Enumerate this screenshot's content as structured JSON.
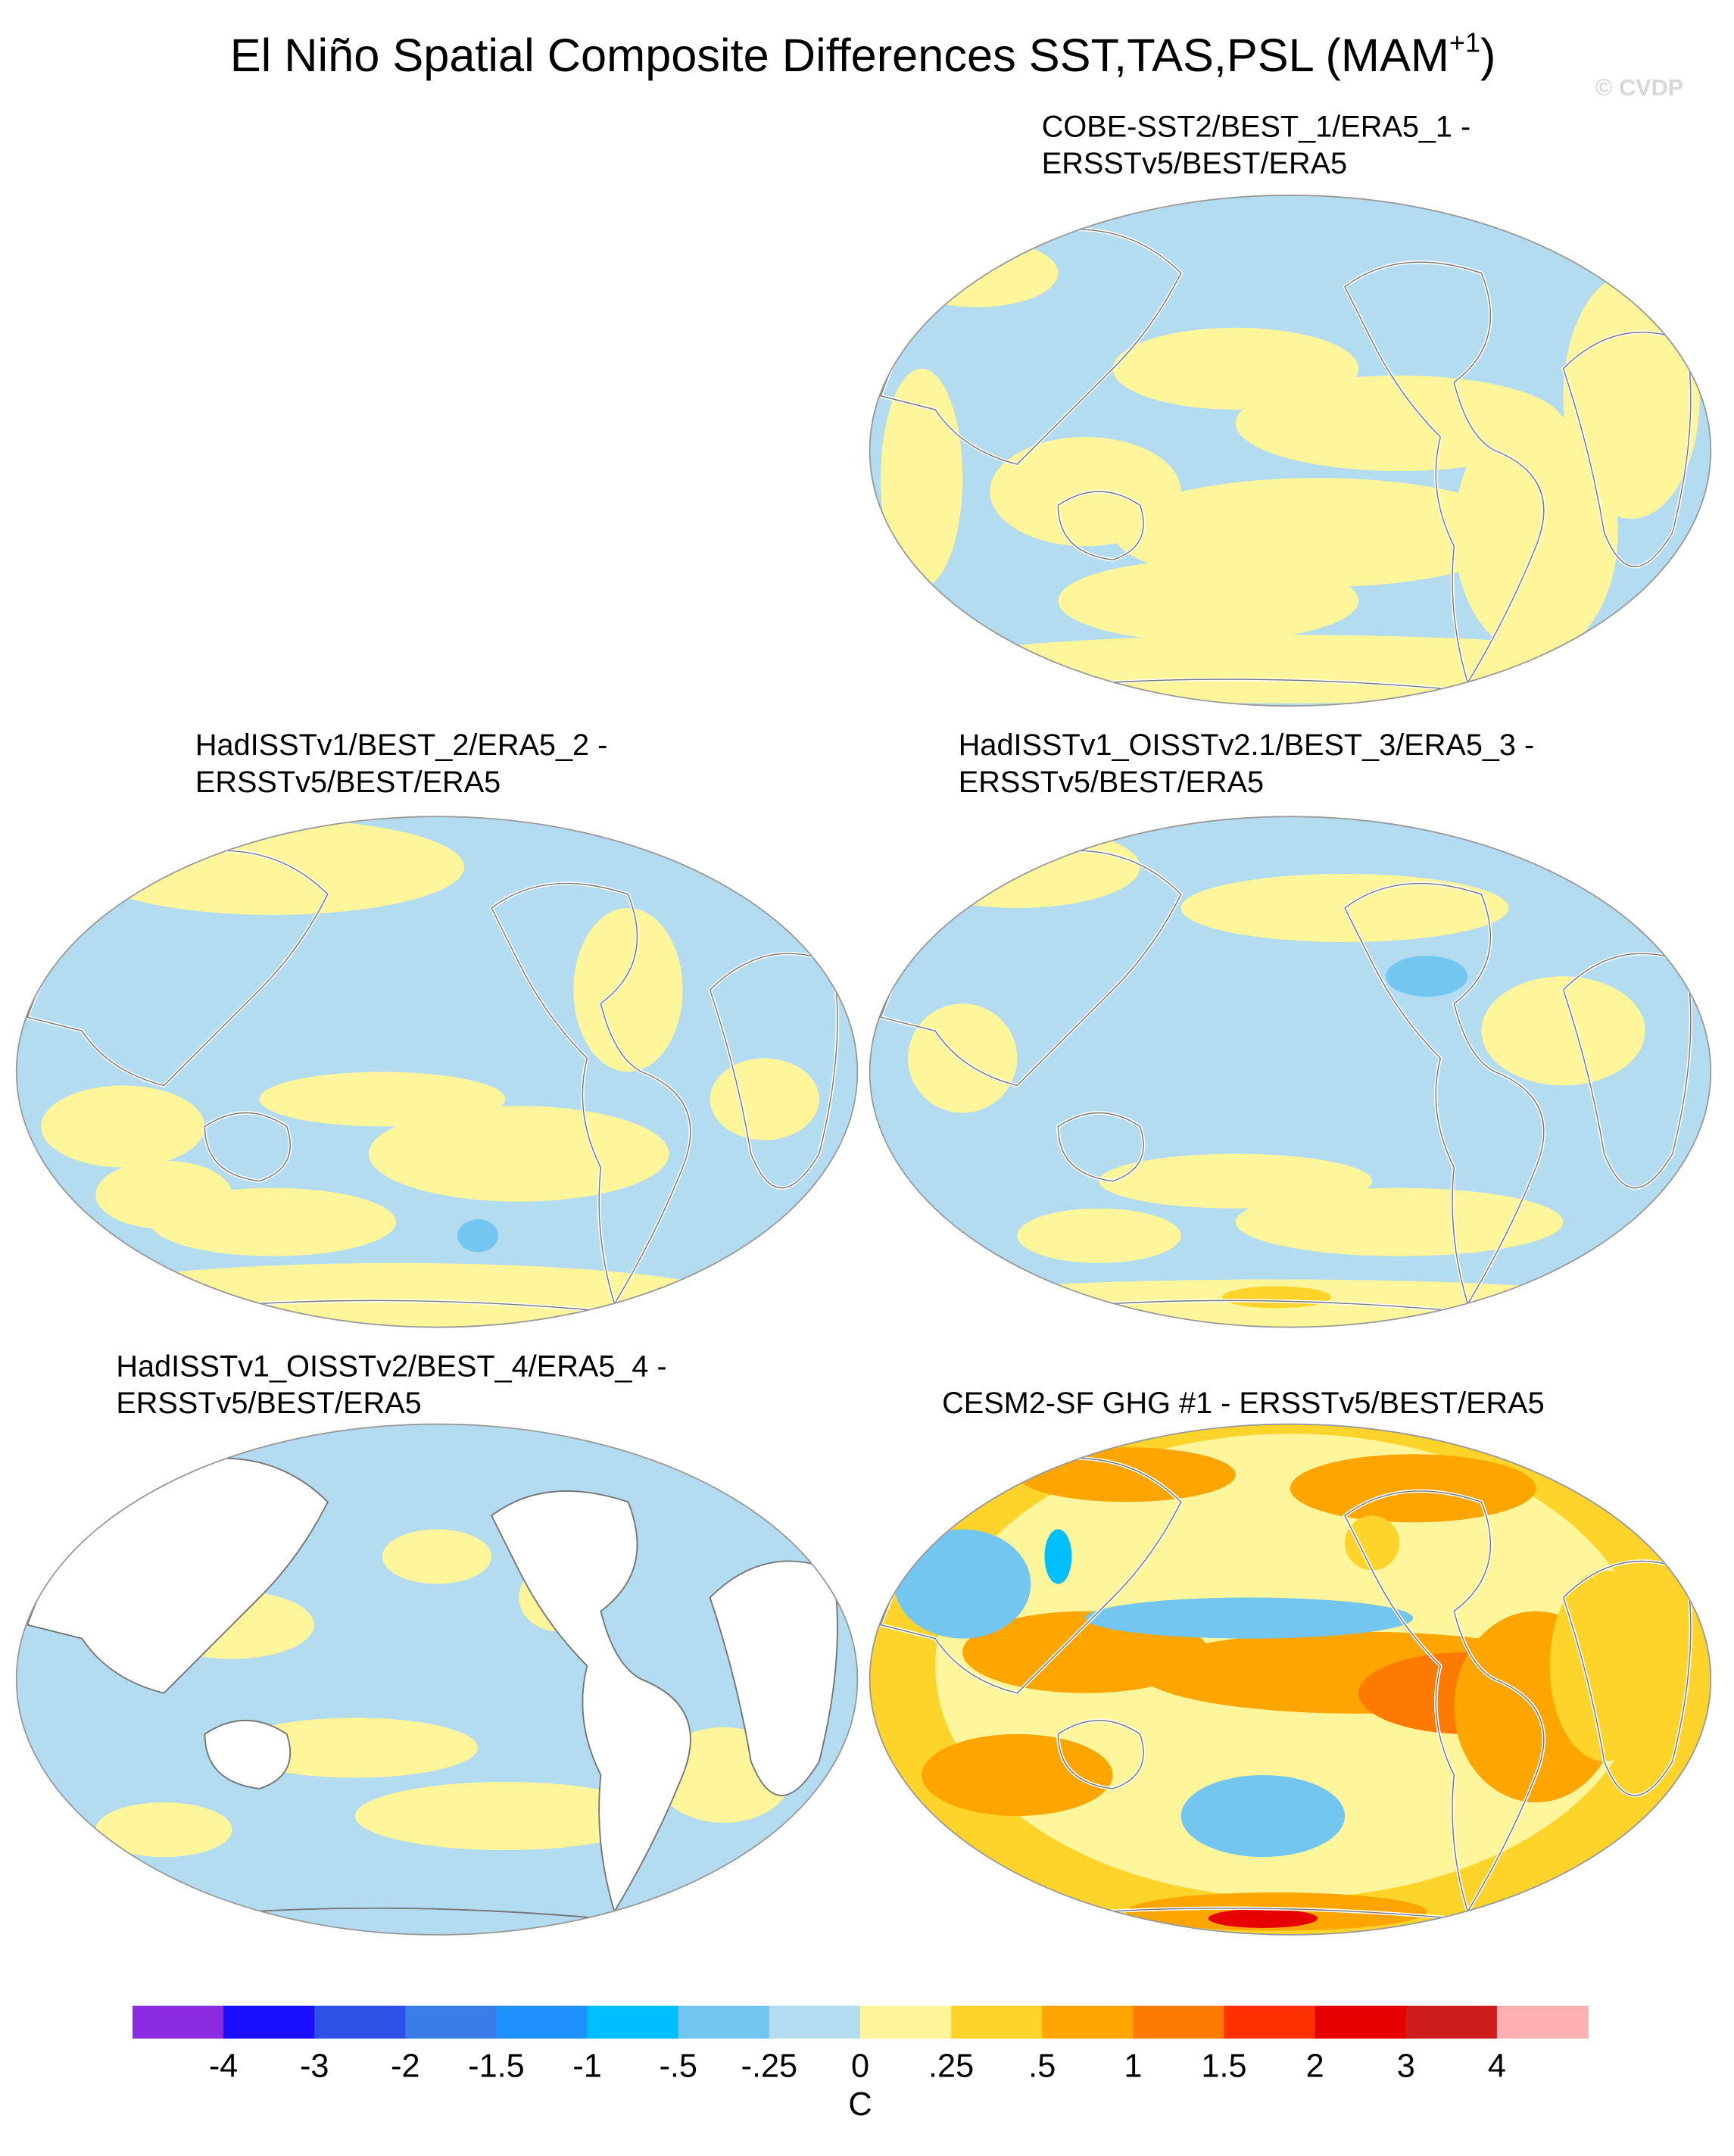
{
  "title": "El Niño Spatial Composite Differences SST,TAS,PSL (MAM",
  "title_superscript": "+1",
  "title_end": ")",
  "copyright": "© CVDP",
  "panels": [
    {
      "title": [
        "COBE-SST2/BEST_1/ERA5_1 -",
        "ERSSTv5/BEST/ERA5"
      ]
    },
    {
      "title": [
        "HadISSTv1/BEST_2/ERA5_2 -",
        "ERSSTv5/BEST/ERA5"
      ]
    },
    {
      "title": [
        "HadISSTv1_OISSTv2.1/BEST_3/ERA5_3 -",
        "ERSSTv5/BEST/ERA5"
      ]
    },
    {
      "title": [
        "HadISSTv1_OISSTv2/BEST_4/ERA5_4 -",
        "ERSSTv5/BEST/ERA5"
      ]
    },
    {
      "title": [
        "CESM2-SF GHG #1 - ERSSTv5/BEST/ERA5"
      ]
    }
  ],
  "colorbar": {
    "label": "C",
    "colors": [
      "#8a2be2",
      "#1a10ff",
      "#2f50e6",
      "#3a7ce8",
      "#1e90ff",
      "#00bfff",
      "#73c6f0",
      "#b3dcf0",
      "#fff59a",
      "#ffd42a",
      "#ffa500",
      "#ff7a00",
      "#ff3000",
      "#e60000",
      "#cc1c1c",
      "#ffb0b0"
    ],
    "ticks": [
      -4,
      -3,
      -2,
      {
        "value": -1.5,
        "label": "-1.5"
      },
      -1,
      {
        "value": -0.5,
        "label": "-.5"
      },
      {
        "value": -0.25,
        "label": "-.25"
      },
      0,
      {
        "value": 0.25,
        "label": ".25"
      },
      {
        "value": 0.5,
        "label": ".5"
      },
      1,
      {
        "value": 1.5,
        "label": "1.5"
      },
      2,
      3,
      4
    ]
  }
}
